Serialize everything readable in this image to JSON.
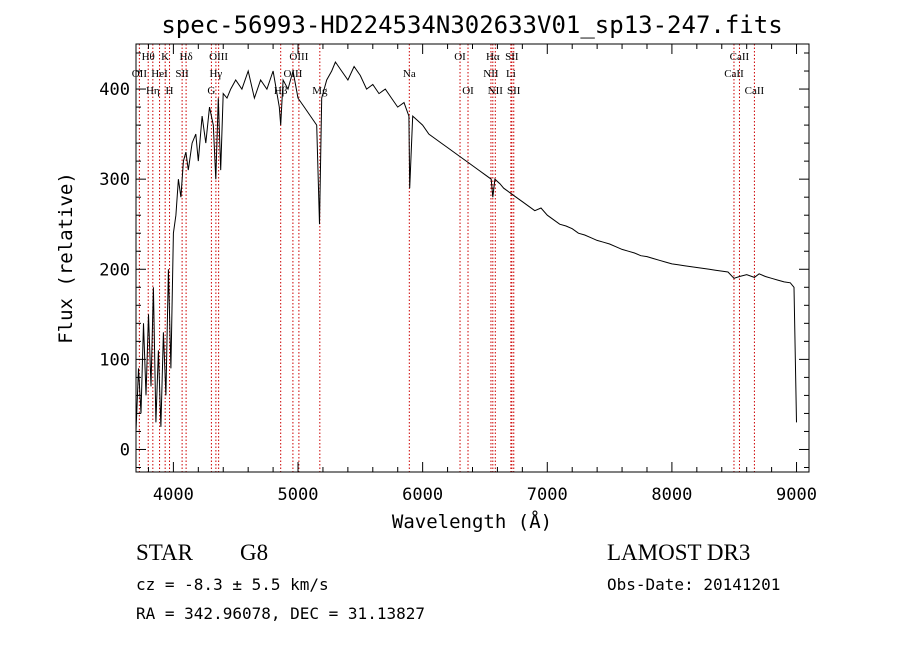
{
  "chart_data": {
    "type": "line",
    "title": "spec-56993-HD224534N302633V01_sp13-247.fits",
    "xlabel": "Wavelength (Å)",
    "ylabel": "Flux (relative)",
    "xlim": [
      3700,
      9100
    ],
    "ylim": [
      -25,
      450
    ],
    "x_ticks": [
      4000,
      5000,
      6000,
      7000,
      8000,
      9000
    ],
    "y_ticks": [
      0,
      100,
      200,
      300,
      400
    ],
    "grid": false,
    "series": [
      {
        "x": [
          3700,
          3720,
          3740,
          3760,
          3780,
          3800,
          3820,
          3840,
          3860,
          3880,
          3900,
          3920,
          3940,
          3960,
          3980,
          4000,
          4020,
          4040,
          4060,
          4080,
          4100,
          4120,
          4150,
          4180,
          4200,
          4230,
          4260,
          4290,
          4320,
          4340,
          4360,
          4380,
          4400,
          4430,
          4460,
          4500,
          4550,
          4600,
          4650,
          4700,
          4750,
          4800,
          4850,
          4861,
          4880,
          4920,
          4960,
          5000,
          5050,
          5100,
          5150,
          5172,
          5190,
          5230,
          5270,
          5300,
          5350,
          5400,
          5450,
          5500,
          5550,
          5600,
          5650,
          5700,
          5750,
          5800,
          5850,
          5890,
          5896,
          5920,
          5960,
          6000,
          6050,
          6100,
          6150,
          6200,
          6250,
          6300,
          6350,
          6400,
          6450,
          6500,
          6550,
          6563,
          6580,
          6620,
          6650,
          6700,
          6750,
          6800,
          6850,
          6900,
          6950,
          7000,
          7050,
          7100,
          7150,
          7200,
          7250,
          7300,
          7350,
          7400,
          7450,
          7500,
          7550,
          7600,
          7650,
          7700,
          7750,
          7800,
          7850,
          7900,
          7950,
          8000,
          8050,
          8100,
          8150,
          8200,
          8250,
          8300,
          8350,
          8400,
          8450,
          8498,
          8542,
          8600,
          8662,
          8700,
          8750,
          8800,
          8850,
          8900,
          8950,
          8980,
          9000
        ],
        "y": [
          20,
          90,
          40,
          140,
          60,
          150,
          70,
          180,
          30,
          110,
          25,
          130,
          60,
          200,
          90,
          240,
          260,
          300,
          280,
          320,
          330,
          310,
          340,
          350,
          320,
          370,
          340,
          380,
          360,
          300,
          390,
          310,
          395,
          390,
          400,
          410,
          400,
          420,
          390,
          410,
          400,
          420,
          380,
          360,
          410,
          400,
          420,
          390,
          380,
          370,
          360,
          250,
          390,
          410,
          420,
          430,
          420,
          410,
          425,
          415,
          400,
          405,
          395,
          400,
          390,
          380,
          385,
          370,
          290,
          370,
          365,
          360,
          350,
          345,
          340,
          335,
          330,
          325,
          320,
          315,
          310,
          305,
          300,
          280,
          300,
          295,
          290,
          285,
          280,
          275,
          270,
          265,
          268,
          260,
          255,
          250,
          248,
          245,
          240,
          238,
          235,
          232,
          230,
          228,
          225,
          222,
          220,
          218,
          215,
          214,
          212,
          210,
          208,
          206,
          205,
          204,
          203,
          202,
          201,
          200,
          199,
          198,
          197,
          190,
          192,
          194,
          191,
          195,
          192,
          190,
          188,
          186,
          185,
          180,
          30
        ]
      }
    ],
    "line_markers": [
      {
        "label": "Hθ",
        "x": 3798,
        "row": 0
      },
      {
        "label": "OII",
        "x": 3727,
        "row": 1
      },
      {
        "label": "K",
        "x": 3934,
        "row": 0
      },
      {
        "label": "Hδ",
        "x": 4102,
        "row": 0
      },
      {
        "label": "HeI",
        "x": 3889,
        "row": 1
      },
      {
        "label": "SII",
        "x": 4070,
        "row": 1
      },
      {
        "label": "Hη",
        "x": 3835,
        "row": 2
      },
      {
        "label": "H",
        "x": 3969,
        "row": 2
      },
      {
        "label": "OIII",
        "x": 4363,
        "row": 0
      },
      {
        "label": "Hγ",
        "x": 4341,
        "row": 1
      },
      {
        "label": "G",
        "x": 4305,
        "row": 2
      },
      {
        "label": "OIII",
        "x": 5007,
        "row": 0
      },
      {
        "label": "OIII",
        "x": 4959,
        "row": 1
      },
      {
        "label": "Hβ",
        "x": 4861,
        "row": 2
      },
      {
        "label": "Mg",
        "x": 5175,
        "row": 2
      },
      {
        "label": "Na",
        "x": 5893,
        "row": 1
      },
      {
        "label": "OI",
        "x": 6300,
        "row": 0
      },
      {
        "label": "OI",
        "x": 6364,
        "row": 2
      },
      {
        "label": "Hα",
        "x": 6563,
        "row": 0
      },
      {
        "label": "SII",
        "x": 6716,
        "row": 0
      },
      {
        "label": "NII",
        "x": 6548,
        "row": 1
      },
      {
        "label": "Li",
        "x": 6708,
        "row": 1
      },
      {
        "label": "NII",
        "x": 6583,
        "row": 2
      },
      {
        "label": "SII",
        "x": 6731,
        "row": 2
      },
      {
        "label": "CaII",
        "x": 8542,
        "row": 0
      },
      {
        "label": "CaII",
        "x": 8498,
        "row": 1
      },
      {
        "label": "CaII",
        "x": 8662,
        "row": 2
      }
    ],
    "line_color": "#000000",
    "marker_color": "#cc0000"
  },
  "info": {
    "object_class": "STAR",
    "subclass": "G8",
    "survey": "LAMOST DR3",
    "cz": "cz = -8.3 ± 5.5 km/s",
    "obs_date": "Obs-Date: 20141201",
    "coords": "RA = 342.96078, DEC =  31.13827"
  }
}
